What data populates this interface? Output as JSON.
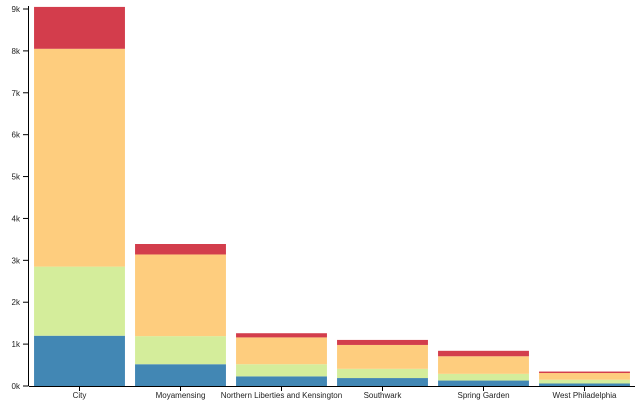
{
  "chart_data": {
    "type": "bar",
    "stacked": true,
    "categories": [
      "City",
      "Moyamensing",
      "Northern Liberties and Kensington",
      "Southwark",
      "Spring Garden",
      "West Philadelphia"
    ],
    "series": [
      {
        "color": "#4287b4",
        "values": [
          1200,
          520,
          230,
          190,
          130,
          60
        ]
      },
      {
        "color": "#d4ed9b",
        "values": [
          1650,
          670,
          290,
          220,
          160,
          90
        ]
      },
      {
        "color": "#fecd7e",
        "values": [
          5200,
          1950,
          640,
          570,
          420,
          160
        ]
      },
      {
        "color": "#d33d4c",
        "values": [
          1000,
          250,
          100,
          120,
          130,
          35
        ]
      }
    ],
    "yticks": [
      0,
      1000,
      2000,
      3000,
      4000,
      5000,
      6000,
      7000,
      8000,
      9000
    ],
    "ytick_labels": [
      "0k",
      "1k",
      "2k",
      "3k",
      "4k",
      "5k",
      "6k",
      "7k",
      "8k",
      "9k"
    ],
    "ylim": [
      0,
      9000
    ],
    "title": "",
    "xlabel": "",
    "ylabel": "",
    "grid": false,
    "legend": "none"
  }
}
